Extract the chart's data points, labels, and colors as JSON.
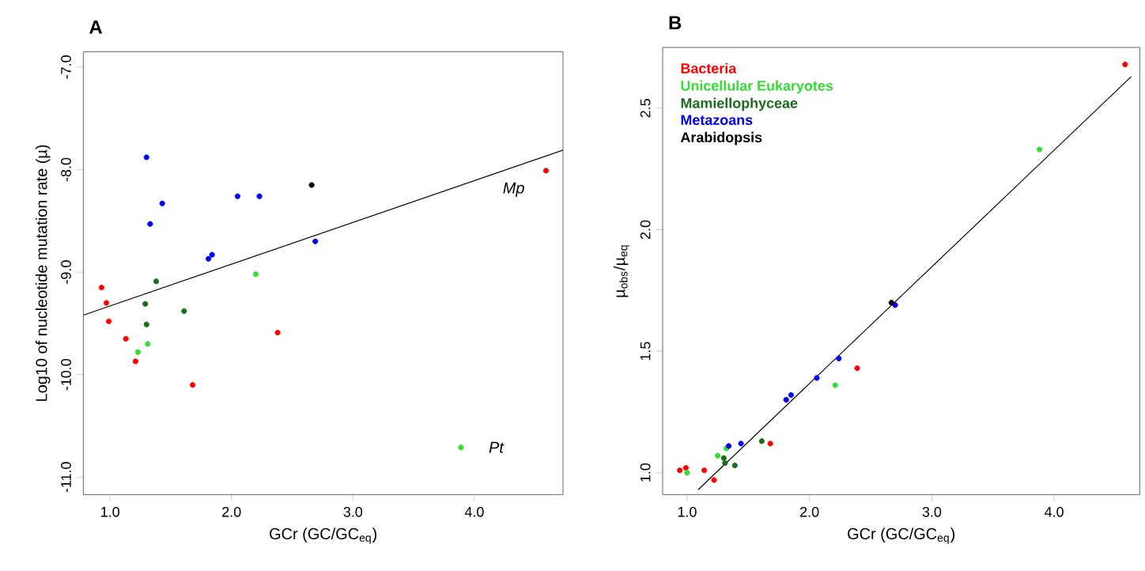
{
  "chart_data": [
    {
      "type": "scatter",
      "title": "A",
      "xlabel": "GCr (GC/GC$_{eq}$)",
      "ylabel": "Log10 of nucleotide mutation rate (µ)",
      "xlim": [
        0.78,
        4.73
      ],
      "ylim": [
        -11.17,
        -6.85
      ],
      "xticks": [
        {
          "value": 1,
          "label": "1.0"
        },
        {
          "value": 2,
          "label": "2.0"
        },
        {
          "value": 3,
          "label": "3.0"
        },
        {
          "value": 4,
          "label": "4.0"
        }
      ],
      "yticks": [
        {
          "value": -11,
          "label": "-11.0"
        },
        {
          "value": -10,
          "label": "-10.0"
        },
        {
          "value": -9,
          "label": "-9.0"
        },
        {
          "value": -8,
          "label": "-8.0"
        },
        {
          "value": -7,
          "label": "-7.0"
        }
      ],
      "grid": false,
      "legend": false,
      "series": [
        {
          "color": "#ff0000",
          "x": [
            0.93,
            0.97,
            0.99,
            1.13,
            1.21,
            1.68,
            2.38,
            4.59
          ],
          "values": [
            -9.15,
            -9.3,
            -9.48,
            -9.65,
            -9.87,
            -10.1,
            -9.59,
            -8.01
          ]
        },
        {
          "color": "#33dd33",
          "x": [
            1.23,
            1.31,
            2.2,
            3.89
          ],
          "values": [
            -9.78,
            -9.7,
            -9.02,
            -10.71
          ]
        },
        {
          "color": "#1a6b1a",
          "x": [
            1.38,
            1.29,
            1.3,
            1.61
          ],
          "values": [
            -9.09,
            -9.31,
            -9.51,
            -9.38
          ]
        },
        {
          "color": "#0000ee",
          "x": [
            1.3,
            1.43,
            1.33,
            1.81,
            1.84,
            2.05,
            2.23,
            2.69
          ],
          "values": [
            -7.88,
            -8.33,
            -8.53,
            -8.87,
            -8.83,
            -8.26,
            -8.26,
            -8.7
          ]
        },
        {
          "color": "#000000",
          "x": [
            2.66
          ],
          "values": [
            -8.15
          ]
        },
        {
          "type": "line",
          "color": "#000000",
          "line_style": "solid",
          "x": [
            0.78,
            4.73
          ],
          "values": [
            -9.42,
            -7.81
          ]
        }
      ],
      "annotations": [
        {
          "text": "Mp",
          "x": 4.59,
          "y": -8.01
        },
        {
          "text": "Pt",
          "x": 3.89,
          "y": -10.71
        }
      ]
    },
    {
      "type": "scatter",
      "title": "B",
      "xlabel": "GCr (GC/GC$_{eq}$)",
      "ylabel": "µ$_{obs}$/µ$_{eq}$",
      "xlim": [
        0.8,
        4.7
      ],
      "ylim": [
        0.91,
        2.75
      ],
      "xticks": [
        {
          "value": 1,
          "label": "1.0"
        },
        {
          "value": 2,
          "label": "2.0"
        },
        {
          "value": 3,
          "label": "3.0"
        },
        {
          "value": 4,
          "label": "4.0"
        }
      ],
      "yticks": [
        {
          "value": 1,
          "label": "1.0"
        },
        {
          "value": 1.5,
          "label": "1.5"
        },
        {
          "value": 2,
          "label": "2.0"
        },
        {
          "value": 2.5,
          "label": "2.5"
        }
      ],
      "grid": false,
      "legend": "top left",
      "series": [
        {
          "name": "Bacteria",
          "color": "#ff0000",
          "x": [
            0.94,
            0.99,
            1.14,
            1.22,
            1.68,
            2.39,
            4.58
          ],
          "values": [
            1.01,
            1.02,
            1.01,
            0.97,
            1.12,
            1.43,
            2.68
          ]
        },
        {
          "name": "Unicellular Eukaryotes",
          "color": "#33dd33",
          "x": [
            1.0,
            1.25,
            1.32,
            2.21,
            3.88
          ],
          "values": [
            1.0,
            1.07,
            1.1,
            1.36,
            2.33
          ]
        },
        {
          "name": "Mamiellophyceae",
          "color": "#1a6b1a",
          "x": [
            1.31,
            1.39,
            1.61,
            1.3
          ],
          "values": [
            1.04,
            1.03,
            1.13,
            1.06
          ]
        },
        {
          "name": "Metazoans",
          "color": "#0000ee",
          "x": [
            1.34,
            1.44,
            1.81,
            1.85,
            2.06,
            2.24,
            2.7
          ],
          "values": [
            1.11,
            1.12,
            1.3,
            1.32,
            1.39,
            1.47,
            1.69
          ]
        },
        {
          "name": "Arabidopsis",
          "color": "#000000",
          "x": [
            2.67
          ],
          "values": [
            1.7
          ]
        },
        {
          "type": "line",
          "color": "#000000",
          "line_style": "solid",
          "x": [
            1.09,
            4.63
          ],
          "values": [
            0.93,
            2.63
          ]
        }
      ]
    }
  ]
}
